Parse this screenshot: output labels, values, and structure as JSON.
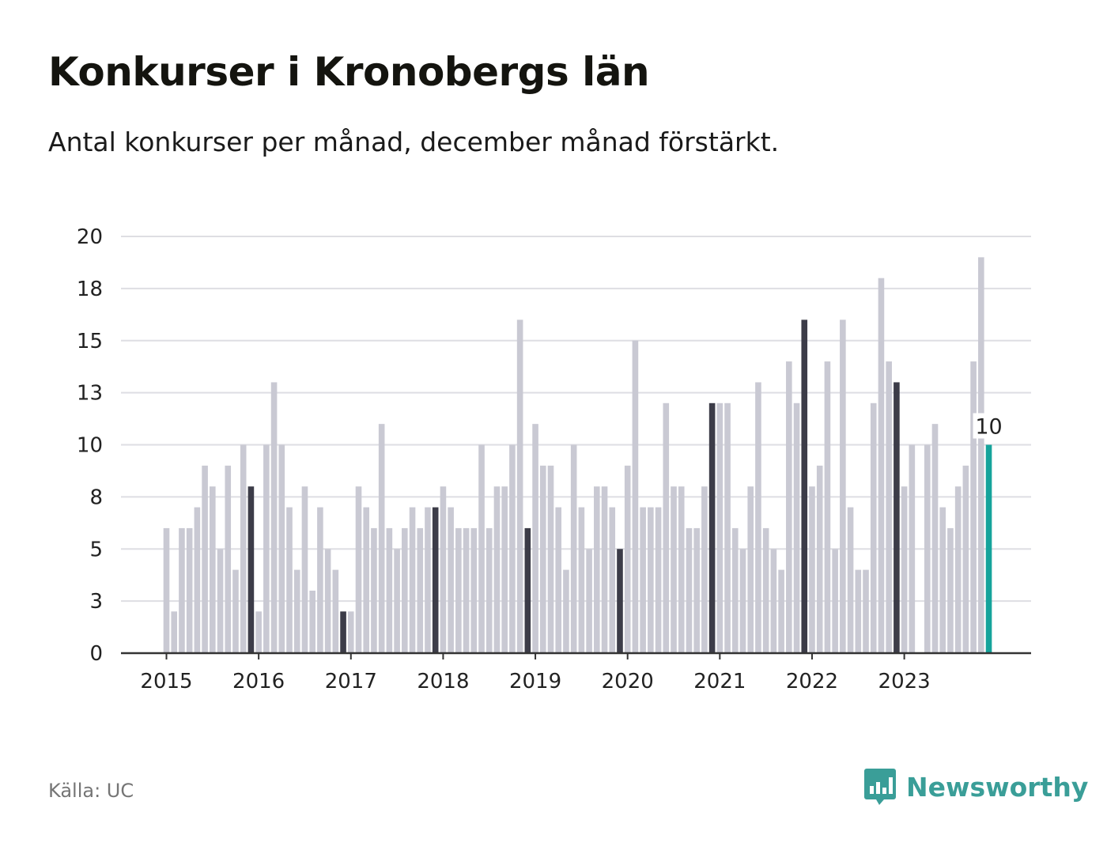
{
  "header": {
    "title": "Konkurser i Kronobergs län",
    "subtitle": "Antal konkurser per månad, december månad förstärkt."
  },
  "footer": {
    "source": "Källa: UC",
    "brand": "Newsworthy",
    "brand_icon": "bar-chart-speech-bubble-icon"
  },
  "colors": {
    "regular": "#c9c9d3",
    "december": "#3c3c48",
    "latest": "#15a39b",
    "grid": "#dedee3",
    "axis": "#333333",
    "brand": "#3a9e98"
  },
  "chart_data": {
    "type": "bar",
    "title": "Konkurser i Kronobergs län",
    "subtitle": "Antal konkurser per månad, december månad förstärkt.",
    "ylim": [
      0,
      20
    ],
    "yticks": [
      0,
      2.5,
      5,
      7.5,
      10,
      12.5,
      15,
      17.5,
      20
    ],
    "ytick_labels": [
      "0",
      "3",
      "5",
      "8",
      "10",
      "13",
      "15",
      "18",
      "20"
    ],
    "xtick_labels": [
      "2015",
      "2016",
      "2017",
      "2018",
      "2019",
      "2020",
      "2021",
      "2022",
      "2023"
    ],
    "start": "2015-01",
    "end": "2023-12",
    "grid": true,
    "highlight": "december",
    "values": [
      6,
      2,
      6,
      6,
      7,
      9,
      8,
      5,
      9,
      4,
      10,
      8,
      2,
      10,
      13,
      10,
      7,
      4,
      8,
      3,
      7,
      5,
      4,
      2,
      2,
      8,
      7,
      6,
      11,
      6,
      5,
      6,
      7,
      6,
      7,
      7,
      8,
      7,
      6,
      6,
      6,
      10,
      6,
      8,
      8,
      10,
      16,
      6,
      11,
      9,
      9,
      7,
      4,
      10,
      7,
      5,
      8,
      8,
      7,
      5,
      9,
      15,
      7,
      7,
      7,
      12,
      8,
      8,
      6,
      6,
      8,
      12,
      12,
      12,
      6,
      5,
      8,
      13,
      6,
      5,
      4,
      14,
      12,
      16,
      8,
      9,
      14,
      5,
      16,
      7,
      4,
      4,
      12,
      18,
      14,
      13,
      8,
      10,
      0,
      10,
      11,
      7,
      6,
      8,
      9,
      14,
      19,
      10
    ],
    "latest_label": "10"
  }
}
